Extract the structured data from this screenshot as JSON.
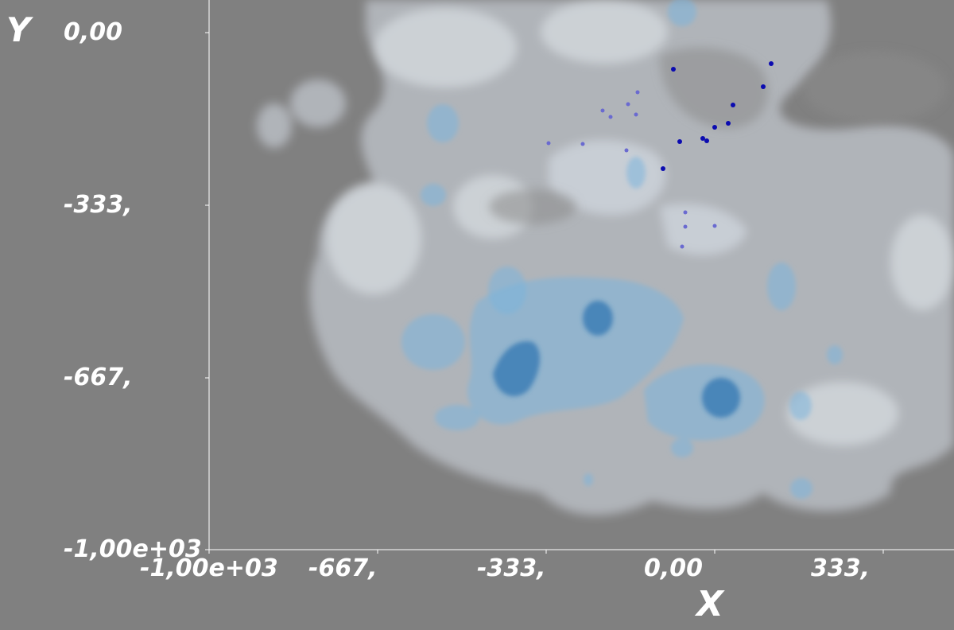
{
  "axes": {
    "x_title": "X",
    "y_title": "Y",
    "x_ticks": [
      "-1,00e+03",
      "-667,",
      "-333,",
      "0,00",
      "333,"
    ],
    "y_ticks": [
      "0,00",
      "-333,",
      "-667,",
      "-1,00e+03"
    ]
  },
  "colors": {
    "background": "#808080",
    "axis": "#ffffff",
    "outer_isosurface": "#dfe8f2",
    "mid_isosurface": "#7cb4dc",
    "inner_isosurface": "#2a72b0",
    "marker_bright": "#0b0bb0",
    "marker_faint": "#6a6ad0"
  }
}
